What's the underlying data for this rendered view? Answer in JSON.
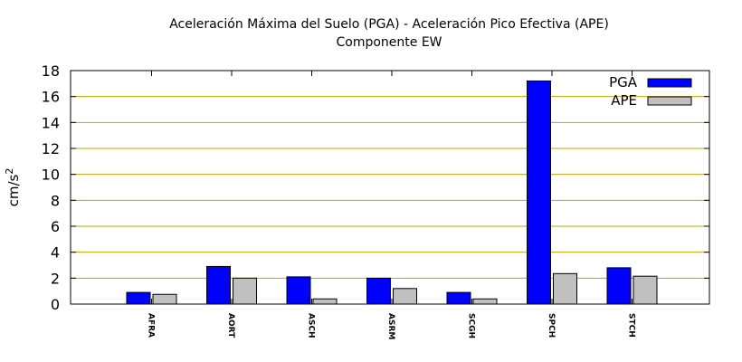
{
  "chart_data": {
    "type": "bar",
    "title": "Aceleración Máxima del Suelo (PGA) -  Aceleración Pico Efectiva (APE)",
    "subtitle": "Componente EW",
    "ylabel": "cm/s",
    "ylabel_superscript": "2",
    "xlabel": "",
    "ylim": [
      0,
      18
    ],
    "yticks": [
      0,
      2,
      4,
      6,
      8,
      10,
      12,
      14,
      16,
      18
    ],
    "grid": true,
    "legend_position": "top-right",
    "categories": [
      "AFRA",
      "AORT",
      "ASCH",
      "ASRM",
      "SCGH",
      "SPCH",
      "STCH"
    ],
    "series": [
      {
        "name": "PGA",
        "color": "#0000ff",
        "values": [
          0.9,
          2.9,
          2.1,
          2.0,
          0.9,
          17.2,
          2.8
        ]
      },
      {
        "name": "APE",
        "color": "#c0c0c0",
        "values": [
          0.75,
          2.0,
          0.4,
          1.2,
          0.4,
          2.35,
          2.15
        ]
      }
    ],
    "grid_color": "#c8a000"
  }
}
